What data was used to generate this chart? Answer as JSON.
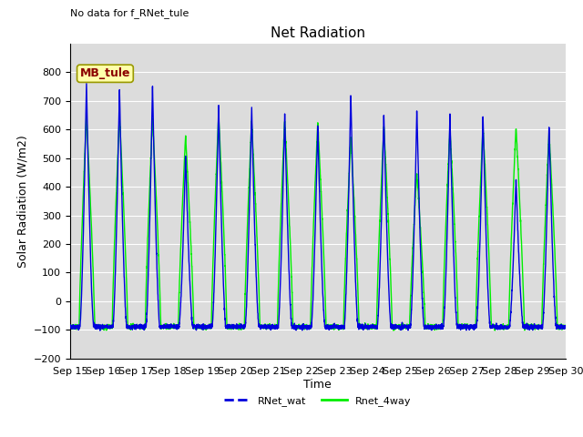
{
  "title": "Net Radiation",
  "xlabel": "Time",
  "ylabel": "Solar Radiation (W/m2)",
  "top_left_text": "No data for f_RNet_tule",
  "inset_label": "MB_tule",
  "ylim": [
    -200,
    900
  ],
  "yticks": [
    -200,
    -100,
    0,
    100,
    200,
    300,
    400,
    500,
    600,
    700,
    800
  ],
  "xtick_labels": [
    "Sep 15",
    "Sep 16",
    "Sep 17",
    "Sep 18",
    "Sep 19",
    "Sep 20",
    "Sep 21",
    "Sep 22",
    "Sep 23",
    "Sep 24",
    "Sep 25",
    "Sep 26",
    "Sep 27",
    "Sep 28",
    "Sep 29",
    "Sep 30"
  ],
  "legend": [
    {
      "label": "RNet_wat",
      "color": "#0000dd",
      "linestyle": "-"
    },
    {
      "label": "Rnet_4way",
      "color": "#00ee00",
      "linestyle": "-"
    }
  ],
  "background_color": "#dcdcdc",
  "grid_color": "white",
  "title_fontsize": 11,
  "axis_label_fontsize": 9,
  "tick_fontsize": 8,
  "inset_color": "#8b0000",
  "inset_bg": "#ffffaa",
  "inset_edge": "#999900"
}
